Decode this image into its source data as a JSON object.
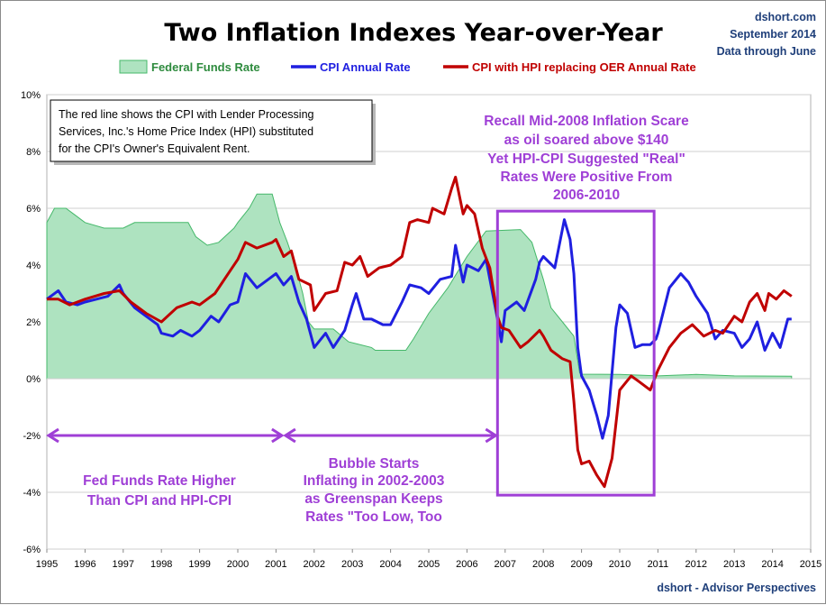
{
  "chart_data": {
    "type": "line",
    "title": "Two Inflation Indexes Year-over-Year",
    "source": "dshort.com",
    "date_label": "September 2014",
    "data_note": "Data through June",
    "footer": "dshort - Advisor Perspectives",
    "xlim": [
      1995,
      2015
    ],
    "ylim": [
      -6,
      10
    ],
    "x_ticks": [
      "1995",
      "1996",
      "1997",
      "1998",
      "1999",
      "2000",
      "2001",
      "2002",
      "2003",
      "2004",
      "2005",
      "2006",
      "2007",
      "2008",
      "2009",
      "2010",
      "2011",
      "2012",
      "2013",
      "2014",
      "2015"
    ],
    "y_ticks": [
      "-6%",
      "-4%",
      "-2%",
      "0%",
      "2%",
      "4%",
      "6%",
      "8%",
      "10%"
    ],
    "series": [
      {
        "name": "Federal Funds Rate",
        "kind": "area",
        "color": "#45b86a",
        "fill": "#aee3c0",
        "points": [
          [
            1995,
            5.5
          ],
          [
            1995.2,
            6.0
          ],
          [
            1995.5,
            6.0
          ],
          [
            1995.7,
            5.8
          ],
          [
            1996,
            5.5
          ],
          [
            1996.5,
            5.3
          ],
          [
            1997,
            5.3
          ],
          [
            1997.3,
            5.5
          ],
          [
            1998,
            5.5
          ],
          [
            1998.7,
            5.5
          ],
          [
            1998.9,
            5.0
          ],
          [
            1999.2,
            4.7
          ],
          [
            1999.5,
            4.8
          ],
          [
            1999.9,
            5.3
          ],
          [
            2000,
            5.5
          ],
          [
            2000.3,
            6.0
          ],
          [
            2000.5,
            6.5
          ],
          [
            2000.9,
            6.5
          ],
          [
            2001,
            6.0
          ],
          [
            2001.1,
            5.5
          ],
          [
            2001.3,
            4.8
          ],
          [
            2001.5,
            4.0
          ],
          [
            2001.7,
            3.0
          ],
          [
            2001.85,
            2.0
          ],
          [
            2002,
            1.75
          ],
          [
            2002.5,
            1.75
          ],
          [
            2002.9,
            1.3
          ],
          [
            2003.5,
            1.1
          ],
          [
            2003.6,
            1.0
          ],
          [
            2004.4,
            1.0
          ],
          [
            2004.6,
            1.4
          ],
          [
            2005,
            2.3
          ],
          [
            2005.5,
            3.2
          ],
          [
            2006,
            4.3
          ],
          [
            2006.5,
            5.2
          ],
          [
            2007.4,
            5.25
          ],
          [
            2007.7,
            4.8
          ],
          [
            2008,
            3.5
          ],
          [
            2008.2,
            2.5
          ],
          [
            2008.5,
            2.0
          ],
          [
            2008.8,
            1.5
          ],
          [
            2008.95,
            0.2
          ],
          [
            2009,
            0.16
          ],
          [
            2010,
            0.15
          ],
          [
            2011,
            0.1
          ],
          [
            2012,
            0.15
          ],
          [
            2013,
            0.1
          ],
          [
            2014.5,
            0.09
          ]
        ]
      },
      {
        "name": "CPI Annual Rate",
        "kind": "line",
        "color": "#1f1fe0",
        "points": [
          [
            1995,
            2.8
          ],
          [
            1995.3,
            3.1
          ],
          [
            1995.5,
            2.7
          ],
          [
            1995.8,
            2.6
          ],
          [
            1996,
            2.7
          ],
          [
            1996.3,
            2.8
          ],
          [
            1996.6,
            2.9
          ],
          [
            1996.9,
            3.3
          ],
          [
            1997,
            3.0
          ],
          [
            1997.3,
            2.5
          ],
          [
            1997.6,
            2.2
          ],
          [
            1997.9,
            1.9
          ],
          [
            1998,
            1.6
          ],
          [
            1998.3,
            1.5
          ],
          [
            1998.5,
            1.7
          ],
          [
            1998.8,
            1.5
          ],
          [
            1999,
            1.7
          ],
          [
            1999.3,
            2.2
          ],
          [
            1999.5,
            2.0
          ],
          [
            1999.8,
            2.6
          ],
          [
            2000,
            2.7
          ],
          [
            2000.2,
            3.7
          ],
          [
            2000.5,
            3.2
          ],
          [
            2000.8,
            3.5
          ],
          [
            2001,
            3.7
          ],
          [
            2001.2,
            3.3
          ],
          [
            2001.4,
            3.6
          ],
          [
            2001.6,
            2.7
          ],
          [
            2001.8,
            2.1
          ],
          [
            2002,
            1.1
          ],
          [
            2002.3,
            1.6
          ],
          [
            2002.5,
            1.1
          ],
          [
            2002.8,
            1.7
          ],
          [
            2003,
            2.6
          ],
          [
            2003.1,
            3.0
          ],
          [
            2003.3,
            2.1
          ],
          [
            2003.5,
            2.1
          ],
          [
            2003.8,
            1.9
          ],
          [
            2004,
            1.9
          ],
          [
            2004.3,
            2.7
          ],
          [
            2004.5,
            3.3
          ],
          [
            2004.8,
            3.2
          ],
          [
            2005,
            3.0
          ],
          [
            2005.3,
            3.5
          ],
          [
            2005.6,
            3.6
          ],
          [
            2005.7,
            4.7
          ],
          [
            2005.9,
            3.4
          ],
          [
            2006,
            4.0
          ],
          [
            2006.3,
            3.8
          ],
          [
            2006.5,
            4.2
          ],
          [
            2006.8,
            2.1
          ],
          [
            2006.9,
            1.3
          ],
          [
            2007,
            2.4
          ],
          [
            2007.3,
            2.7
          ],
          [
            2007.5,
            2.4
          ],
          [
            2007.8,
            3.5
          ],
          [
            2007.9,
            4.1
          ],
          [
            2008,
            4.3
          ],
          [
            2008.3,
            3.9
          ],
          [
            2008.55,
            5.6
          ],
          [
            2008.7,
            4.9
          ],
          [
            2008.8,
            3.7
          ],
          [
            2008.9,
            1.1
          ],
          [
            2009,
            0.1
          ],
          [
            2009.2,
            -0.4
          ],
          [
            2009.4,
            -1.3
          ],
          [
            2009.55,
            -2.1
          ],
          [
            2009.7,
            -1.3
          ],
          [
            2009.9,
            1.8
          ],
          [
            2010,
            2.6
          ],
          [
            2010.2,
            2.3
          ],
          [
            2010.4,
            1.1
          ],
          [
            2010.6,
            1.2
          ],
          [
            2010.8,
            1.2
          ],
          [
            2010.95,
            1.4
          ],
          [
            2011,
            1.6
          ],
          [
            2011.3,
            3.2
          ],
          [
            2011.6,
            3.7
          ],
          [
            2011.8,
            3.4
          ],
          [
            2012,
            2.9
          ],
          [
            2012.3,
            2.3
          ],
          [
            2012.5,
            1.4
          ],
          [
            2012.7,
            1.7
          ],
          [
            2013,
            1.6
          ],
          [
            2013.2,
            1.1
          ],
          [
            2013.4,
            1.4
          ],
          [
            2013.6,
            2.0
          ],
          [
            2013.8,
            1.0
          ],
          [
            2014,
            1.6
          ],
          [
            2014.2,
            1.1
          ],
          [
            2014.4,
            2.1
          ],
          [
            2014.5,
            2.1
          ]
        ]
      },
      {
        "name": "CPI with HPI replacing OER Annual Rate",
        "kind": "line",
        "color": "#c00000",
        "points": [
          [
            1995,
            2.8
          ],
          [
            1995.3,
            2.8
          ],
          [
            1995.6,
            2.6
          ],
          [
            1996,
            2.8
          ],
          [
            1996.5,
            3.0
          ],
          [
            1996.9,
            3.1
          ],
          [
            1997.2,
            2.7
          ],
          [
            1997.6,
            2.3
          ],
          [
            1998,
            2.0
          ],
          [
            1998.4,
            2.5
          ],
          [
            1998.8,
            2.7
          ],
          [
            1999,
            2.6
          ],
          [
            1999.4,
            3.0
          ],
          [
            1999.8,
            3.8
          ],
          [
            2000,
            4.2
          ],
          [
            2000.2,
            4.8
          ],
          [
            2000.5,
            4.6
          ],
          [
            2000.9,
            4.8
          ],
          [
            2001,
            4.9
          ],
          [
            2001.2,
            4.3
          ],
          [
            2001.4,
            4.5
          ],
          [
            2001.6,
            3.5
          ],
          [
            2001.9,
            3.3
          ],
          [
            2002,
            2.4
          ],
          [
            2002.3,
            3.0
          ],
          [
            2002.6,
            3.1
          ],
          [
            2002.8,
            4.1
          ],
          [
            2003,
            4.0
          ],
          [
            2003.2,
            4.3
          ],
          [
            2003.4,
            3.6
          ],
          [
            2003.7,
            3.9
          ],
          [
            2004,
            4.0
          ],
          [
            2004.3,
            4.3
          ],
          [
            2004.5,
            5.5
          ],
          [
            2004.7,
            5.6
          ],
          [
            2005,
            5.5
          ],
          [
            2005.1,
            6.0
          ],
          [
            2005.4,
            5.8
          ],
          [
            2005.6,
            6.7
          ],
          [
            2005.7,
            7.1
          ],
          [
            2005.9,
            5.8
          ],
          [
            2006,
            6.1
          ],
          [
            2006.2,
            5.8
          ],
          [
            2006.4,
            4.6
          ],
          [
            2006.6,
            3.9
          ],
          [
            2006.8,
            2.2
          ],
          [
            2006.9,
            1.8
          ],
          [
            2007.1,
            1.7
          ],
          [
            2007.4,
            1.1
          ],
          [
            2007.6,
            1.3
          ],
          [
            2007.9,
            1.7
          ],
          [
            2008,
            1.5
          ],
          [
            2008.2,
            1.0
          ],
          [
            2008.5,
            0.7
          ],
          [
            2008.7,
            0.6
          ],
          [
            2008.8,
            -0.8
          ],
          [
            2008.9,
            -2.5
          ],
          [
            2009,
            -3.0
          ],
          [
            2009.2,
            -2.9
          ],
          [
            2009.4,
            -3.4
          ],
          [
            2009.6,
            -3.8
          ],
          [
            2009.8,
            -2.8
          ],
          [
            2010,
            -0.4
          ],
          [
            2010.3,
            0.1
          ],
          [
            2010.5,
            -0.1
          ],
          [
            2010.7,
            -0.3
          ],
          [
            2010.8,
            -0.4
          ],
          [
            2011,
            0.3
          ],
          [
            2011.3,
            1.1
          ],
          [
            2011.6,
            1.6
          ],
          [
            2011.9,
            1.9
          ],
          [
            2012.2,
            1.5
          ],
          [
            2012.5,
            1.7
          ],
          [
            2012.7,
            1.6
          ],
          [
            2013,
            2.2
          ],
          [
            2013.2,
            2.0
          ],
          [
            2013.4,
            2.7
          ],
          [
            2013.6,
            3.0
          ],
          [
            2013.8,
            2.4
          ],
          [
            2013.9,
            3.0
          ],
          [
            2014.1,
            2.8
          ],
          [
            2014.3,
            3.1
          ],
          [
            2014.5,
            2.9
          ]
        ]
      }
    ],
    "annotations": {
      "note_box": [
        "The red line shows the CPI with Lender Processing",
        "Services, Inc.'s  Home Price Index (HPI) substituted",
        "for the CPI's Owner's Equivalent Rent."
      ],
      "scare": [
        "Recall Mid-2008 Inflation Scare",
        "as oil soared above $140",
        "Yet HPI-CPI Suggested \"Real\"",
        "Rates Were Positive From",
        "2006-2010"
      ],
      "fed": [
        "Fed Funds Rate Higher",
        "Than CPI and HPI-CPI"
      ],
      "bubble": [
        "Bubble Starts",
        "Inflating in 2002-2003",
        "as Greenspan Keeps",
        "Rates \"Too Low, Too"
      ],
      "annotation_color": "#9f3fd6",
      "arrow_y_value": -2,
      "arrows": [
        [
          1995,
          2001.2
        ],
        [
          2001.2,
          2006.8
        ]
      ],
      "highlight_box": {
        "x0": 2006.8,
        "x1": 2010.9,
        "y0": -4.1,
        "y1": 5.9
      }
    }
  }
}
